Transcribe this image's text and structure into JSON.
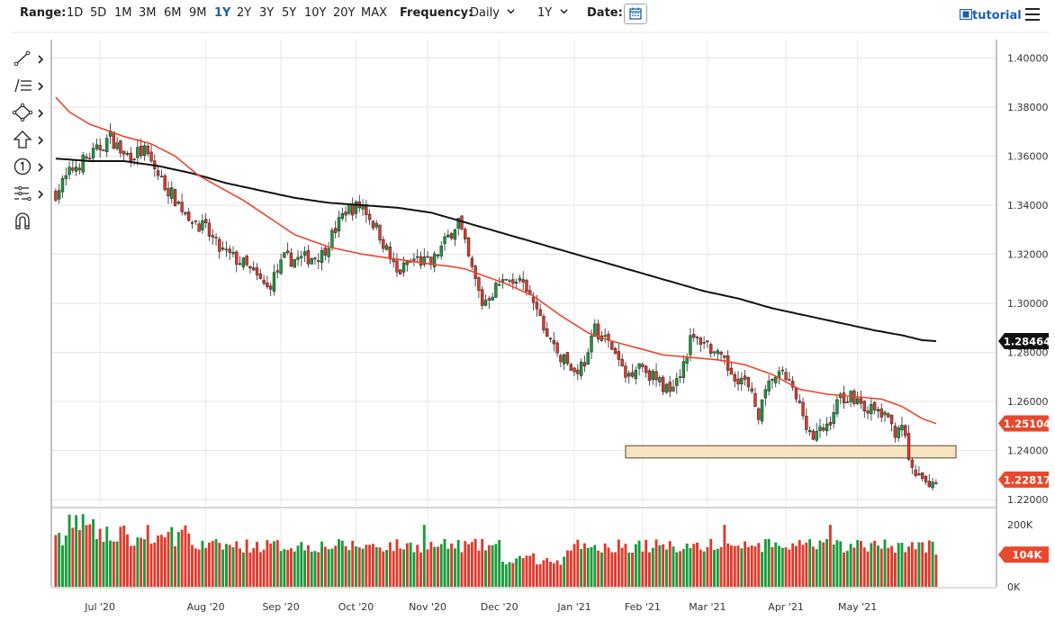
{
  "toolbar": {
    "range_label": "Range:",
    "ranges": [
      "1D",
      "5D",
      "1M",
      "3M",
      "6M",
      "9M",
      "1Y",
      "2Y",
      "3Y",
      "5Y",
      "10Y",
      "20Y",
      "MAX"
    ],
    "active_range": "1Y",
    "frequency_label": "Frequency:",
    "frequency_value": "Daily",
    "period_value": "1Y",
    "date_label": "Date:",
    "tutorial_label": "tutorial"
  },
  "drawing_tools": [
    "line-tool-icon",
    "fib-tool-icon",
    "shape-tool-icon",
    "arrow-tool-icon",
    "counter-tool-icon",
    "pattern-tool-icon",
    "magnet-icon"
  ],
  "chart_data": {
    "type": "candlestick",
    "x_tick_labels": [
      "Jul '20",
      "Aug '20",
      "Sep '20",
      "Oct '20",
      "Nov '20",
      "Dec '20",
      "Jan '21",
      "Feb '21",
      "Mar '21",
      "Apr '21",
      "May '21"
    ],
    "y_tick_labels": [
      "1.40000",
      "1.38000",
      "1.36000",
      "1.34000",
      "1.32000",
      "1.30000",
      "1.28000",
      "1.26000",
      "1.24000",
      "1.22000"
    ],
    "ylim": [
      1.2175,
      1.4075
    ],
    "volume_tick_labels": [
      "200K",
      "0K"
    ],
    "volume_ylim": [
      0,
      250000
    ],
    "grid": true,
    "colors": {
      "up": "#1a9a3c",
      "down": "#e0392b",
      "ma_short": "#e8482c",
      "ma_long": "#111111",
      "zone": "#f7e3bf"
    },
    "price_badges": {
      "ma_long_last": "1.28464",
      "ma_short_last": "1.25104",
      "last_close": "1.22817",
      "volume_last": "104K"
    },
    "support_zone": {
      "low": 1.237,
      "high": 1.242
    },
    "price_anchors": [
      [
        0,
        1.345
      ],
      [
        5,
        1.355
      ],
      [
        12,
        1.362
      ],
      [
        16,
        1.368
      ],
      [
        20,
        1.36
      ],
      [
        26,
        1.362
      ],
      [
        31,
        1.35
      ],
      [
        38,
        1.337
      ],
      [
        44,
        1.33
      ],
      [
        48,
        1.322
      ],
      [
        55,
        1.316
      ],
      [
        62,
        1.306
      ],
      [
        67,
        1.318
      ],
      [
        72,
        1.318
      ],
      [
        78,
        1.32
      ],
      [
        85,
        1.338
      ],
      [
        90,
        1.34
      ],
      [
        95,
        1.328
      ],
      [
        100,
        1.312
      ],
      [
        105,
        1.318
      ],
      [
        110,
        1.316
      ],
      [
        115,
        1.327
      ],
      [
        118,
        1.334
      ],
      [
        121,
        1.318
      ],
      [
        125,
        1.3
      ],
      [
        130,
        1.308
      ],
      [
        135,
        1.31
      ],
      [
        140,
        1.3
      ],
      [
        144,
        1.287
      ],
      [
        148,
        1.278
      ],
      [
        152,
        1.272
      ],
      [
        156,
        1.278
      ],
      [
        158,
        1.29
      ],
      [
        163,
        1.282
      ],
      [
        167,
        1.27
      ],
      [
        171,
        1.276
      ],
      [
        175,
        1.27
      ],
      [
        179,
        1.265
      ],
      [
        183,
        1.272
      ],
      [
        186,
        1.285
      ],
      [
        190,
        1.285
      ],
      [
        194,
        1.278
      ],
      [
        198,
        1.272
      ],
      [
        202,
        1.268
      ],
      [
        206,
        1.255
      ],
      [
        210,
        1.27
      ],
      [
        214,
        1.27
      ],
      [
        218,
        1.258
      ],
      [
        222,
        1.245
      ],
      [
        226,
        1.25
      ],
      [
        230,
        1.262
      ],
      [
        234,
        1.262
      ],
      [
        238,
        1.257
      ],
      [
        242,
        1.255
      ],
      [
        246,
        1.248
      ],
      [
        248,
        1.252
      ],
      [
        250,
        1.235
      ],
      [
        253,
        1.228
      ],
      [
        256,
        1.227
      ],
      [
        258,
        1.228
      ]
    ],
    "sma50_anchors": [
      [
        0,
        1.384
      ],
      [
        4,
        1.378
      ],
      [
        10,
        1.373
      ],
      [
        20,
        1.368
      ],
      [
        28,
        1.365
      ],
      [
        35,
        1.36
      ],
      [
        42,
        1.352
      ],
      [
        55,
        1.342
      ],
      [
        70,
        1.328
      ],
      [
        80,
        1.323
      ],
      [
        90,
        1.32
      ],
      [
        100,
        1.318
      ],
      [
        110,
        1.316
      ],
      [
        116,
        1.315
      ],
      [
        120,
        1.314
      ],
      [
        126,
        1.311
      ],
      [
        132,
        1.308
      ],
      [
        140,
        1.303
      ],
      [
        148,
        1.295
      ],
      [
        156,
        1.288
      ],
      [
        162,
        1.285
      ],
      [
        170,
        1.282
      ],
      [
        178,
        1.279
      ],
      [
        186,
        1.278
      ],
      [
        194,
        1.277
      ],
      [
        202,
        1.275
      ],
      [
        210,
        1.271
      ],
      [
        218,
        1.265
      ],
      [
        226,
        1.263
      ],
      [
        234,
        1.262
      ],
      [
        242,
        1.261
      ],
      [
        248,
        1.258
      ],
      [
        254,
        1.253
      ],
      [
        258,
        1.251
      ]
    ],
    "sma200_anchors": [
      [
        0,
        1.359
      ],
      [
        10,
        1.358
      ],
      [
        20,
        1.358
      ],
      [
        30,
        1.356
      ],
      [
        40,
        1.353
      ],
      [
        50,
        1.349
      ],
      [
        60,
        1.346
      ],
      [
        70,
        1.343
      ],
      [
        80,
        1.341
      ],
      [
        90,
        1.34
      ],
      [
        100,
        1.339
      ],
      [
        110,
        1.337
      ],
      [
        115,
        1.335
      ],
      [
        120,
        1.333
      ],
      [
        130,
        1.329
      ],
      [
        140,
        1.325
      ],
      [
        150,
        1.321
      ],
      [
        160,
        1.317
      ],
      [
        170,
        1.313
      ],
      [
        180,
        1.309
      ],
      [
        190,
        1.305
      ],
      [
        200,
        1.302
      ],
      [
        210,
        1.298
      ],
      [
        220,
        1.295
      ],
      [
        230,
        1.292
      ],
      [
        240,
        1.289
      ],
      [
        248,
        1.287
      ],
      [
        254,
        1.285
      ],
      [
        258,
        1.2846
      ]
    ],
    "bar_count": 259
  }
}
